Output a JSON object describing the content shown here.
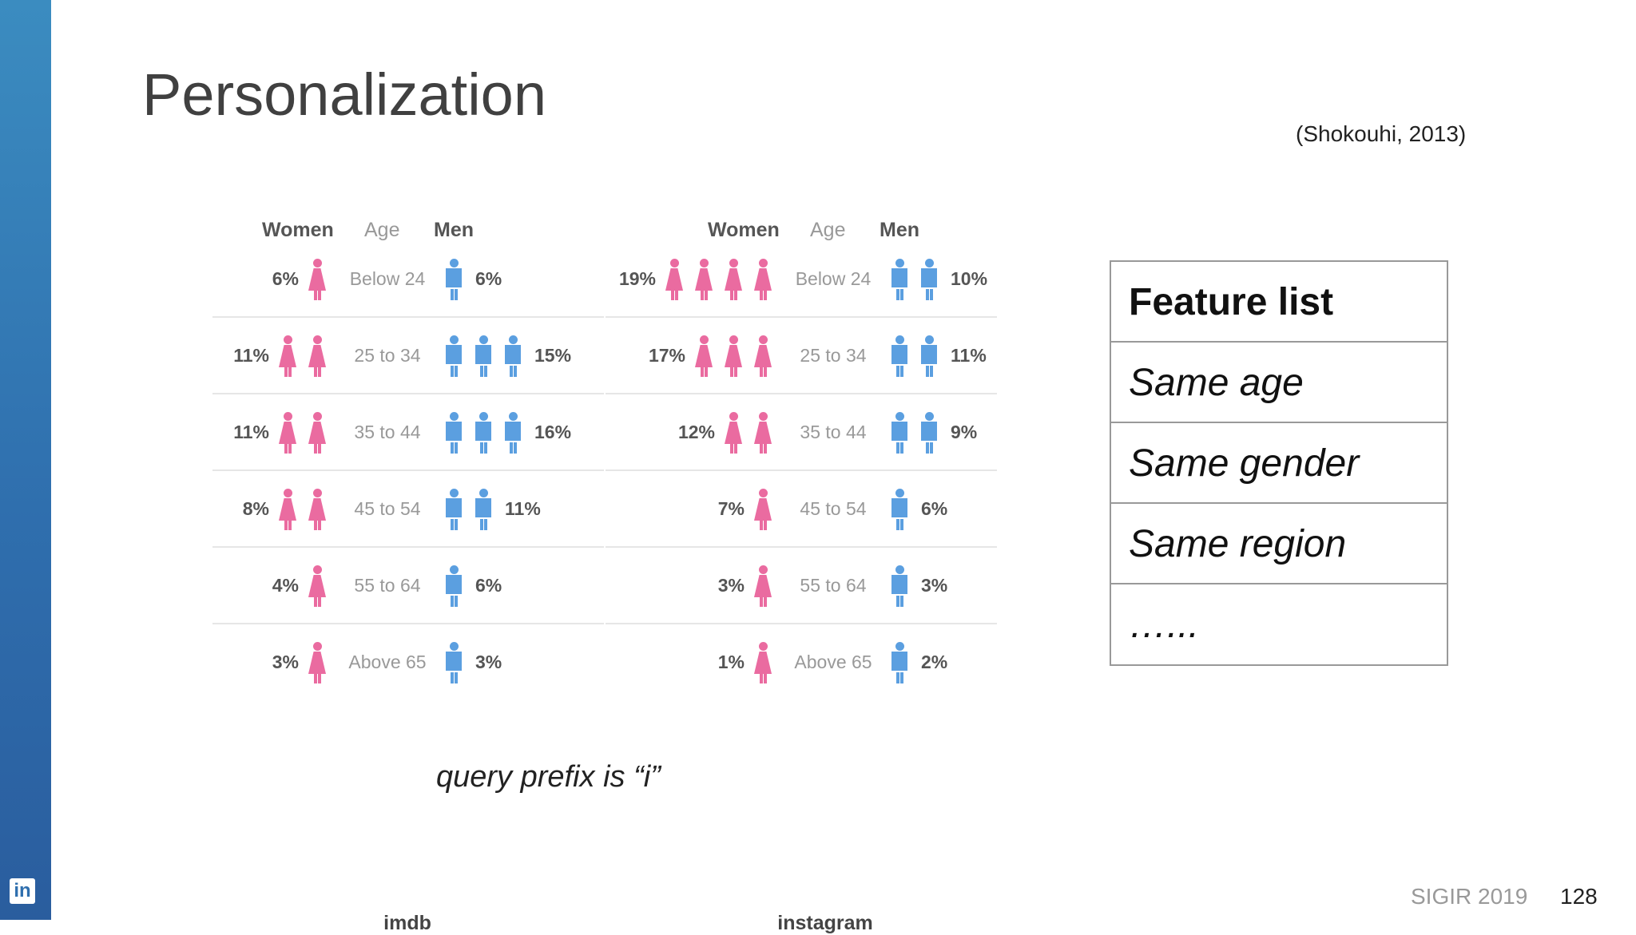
{
  "slide": {
    "title": "Personalization",
    "citation": "(Shokouhi, 2013)",
    "query_note": "query prefix is “i”",
    "conference": "SIGIR 2019",
    "page_number": "128",
    "logo_text": "in"
  },
  "header": {
    "women": "Women",
    "age": "Age",
    "men": "Men"
  },
  "panels": [
    {
      "caption": "imdb",
      "rows": [
        {
          "age": "Below 24",
          "women": "6%",
          "men": "6%",
          "women_icons": 1,
          "men_icons": 1
        },
        {
          "age": "25 to 34",
          "women": "11%",
          "men": "15%",
          "women_icons": 2,
          "men_icons": 3
        },
        {
          "age": "35 to 44",
          "women": "11%",
          "men": "16%",
          "women_icons": 2,
          "men_icons": 3
        },
        {
          "age": "45 to 54",
          "women": "8%",
          "men": "11%",
          "women_icons": 2,
          "men_icons": 2
        },
        {
          "age": "55 to 64",
          "women": "4%",
          "men": "6%",
          "women_icons": 1,
          "men_icons": 1
        },
        {
          "age": "Above 65",
          "women": "3%",
          "men": "3%",
          "women_icons": 1,
          "men_icons": 1
        }
      ]
    },
    {
      "caption": "instagram",
      "rows": [
        {
          "age": "Below 24",
          "women": "19%",
          "men": "10%",
          "women_icons": 4,
          "men_icons": 2
        },
        {
          "age": "25 to 34",
          "women": "17%",
          "men": "11%",
          "women_icons": 3,
          "men_icons": 2
        },
        {
          "age": "35 to 44",
          "women": "12%",
          "men": "9%",
          "women_icons": 2,
          "men_icons": 2
        },
        {
          "age": "45 to 54",
          "women": "7%",
          "men": "6%",
          "women_icons": 1,
          "men_icons": 1
        },
        {
          "age": "55 to 64",
          "women": "3%",
          "men": "3%",
          "women_icons": 1,
          "men_icons": 1
        },
        {
          "age": "Above 65",
          "women": "1%",
          "men": "2%",
          "women_icons": 1,
          "men_icons": 1
        }
      ]
    }
  ],
  "feature_list": {
    "header": "Feature list",
    "items": [
      "Same age",
      "Same gender",
      "Same region",
      "…..."
    ]
  },
  "colors": {
    "women": "#ea6ba0",
    "men": "#5b9fe0",
    "sidebar": "#2f6fae"
  },
  "icons": {
    "women": "woman-icon",
    "men": "man-icon",
    "logo": "linkedin-icon"
  }
}
